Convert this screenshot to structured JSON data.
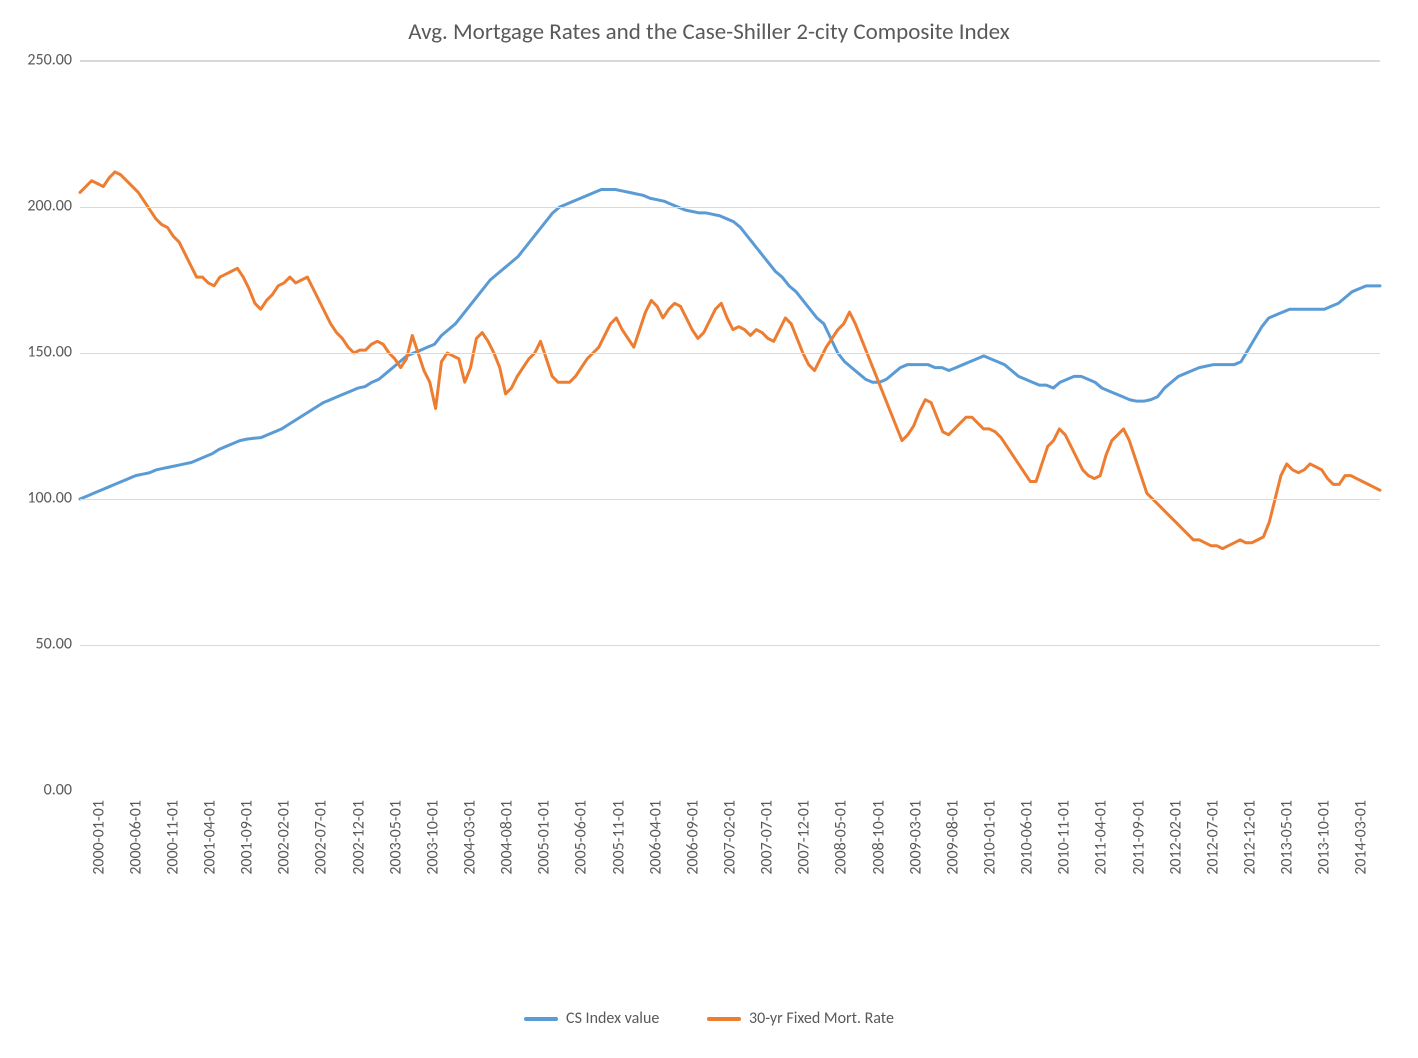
{
  "chart": {
    "type": "line",
    "title": "Avg. Mortgage Rates and the Case-Shiller 2-city Composite Index",
    "title_fontsize": 23,
    "title_color": "#595959",
    "background_color": "#ffffff",
    "grid_color": "#d9d9d9",
    "axis_font_color": "#595959",
    "axis_fontsize": 16,
    "line_width": 3,
    "ylim": [
      0,
      250
    ],
    "ytick_step": 50,
    "yticks": [
      "0.00",
      "50.00",
      "100.00",
      "150.00",
      "200.00",
      "250.00"
    ],
    "x_labels": [
      "2000-01-01",
      "2000-06-01",
      "2000-11-01",
      "2001-04-01",
      "2001-09-01",
      "2002-02-01",
      "2002-07-01",
      "2002-12-01",
      "2003-05-01",
      "2003-10-01",
      "2004-03-01",
      "2004-08-01",
      "2005-01-01",
      "2005-06-01",
      "2005-11-01",
      "2006-04-01",
      "2006-09-01",
      "2007-02-01",
      "2007-07-01",
      "2007-12-01",
      "2008-05-01",
      "2008-10-01",
      "2009-03-01",
      "2009-08-01",
      "2010-01-01",
      "2010-06-01",
      "2010-11-01",
      "2011-04-01",
      "2011-09-01",
      "2012-02-01",
      "2012-07-01",
      "2012-12-01",
      "2013-05-01",
      "2013-10-01",
      "2014-03-01"
    ],
    "series": [
      {
        "name": "CS Index value",
        "color": "#5b9bd5",
        "values": [
          100,
          101,
          102,
          103,
          104,
          105,
          106,
          107,
          108,
          108.5,
          109,
          110,
          110.5,
          111,
          111.5,
          112,
          112.5,
          113.5,
          114.5,
          115.5,
          117,
          118,
          119,
          120,
          120.5,
          120.8,
          121,
          122,
          123,
          124,
          125.5,
          127,
          128.5,
          130,
          131.5,
          133,
          134,
          135,
          136,
          137,
          138,
          138.5,
          140,
          141,
          143,
          145,
          147,
          149,
          150,
          151,
          152,
          153,
          156,
          158,
          160,
          163,
          166,
          169,
          172,
          175,
          177,
          179,
          181,
          183,
          186,
          189,
          192,
          195,
          198,
          200,
          201,
          202,
          203,
          204,
          205,
          206,
          206,
          206,
          205.5,
          205,
          204.5,
          204,
          203,
          202.5,
          202,
          201,
          200,
          199,
          198.5,
          198,
          198,
          197.5,
          197,
          196,
          195,
          193,
          190,
          187,
          184,
          181,
          178,
          176,
          173,
          171,
          168,
          165,
          162,
          160,
          155,
          150,
          147,
          145,
          143,
          141,
          140,
          140,
          141,
          143,
          145,
          146,
          146,
          146,
          146,
          145,
          145,
          144,
          145,
          146,
          147,
          148,
          149,
          148,
          147,
          146,
          144,
          142,
          141,
          140,
          139,
          139,
          138,
          140,
          141,
          142,
          142,
          141,
          140,
          138,
          137,
          136,
          135,
          134,
          133.5,
          133.5,
          134,
          135,
          138,
          140,
          142,
          143,
          144,
          145,
          145.5,
          146,
          146,
          146,
          146,
          147,
          151,
          155,
          159,
          162,
          163,
          164,
          165,
          165,
          165,
          165,
          165,
          165,
          166,
          167,
          169,
          171,
          172,
          173,
          173,
          173
        ]
      },
      {
        "name": "30-yr Fixed Mort. Rate",
        "color": "#ed7d31",
        "values": [
          205,
          207,
          209,
          208,
          207,
          210,
          212,
          211,
          209,
          207,
          205,
          202,
          199,
          196,
          194,
          193,
          190,
          188,
          184,
          180,
          176,
          176,
          174,
          173,
          176,
          177,
          178,
          179,
          176,
          172,
          167,
          165,
          168,
          170,
          173,
          174,
          176,
          174,
          175,
          176,
          172,
          168,
          164,
          160,
          157,
          155,
          152,
          150,
          151,
          151,
          153,
          154,
          153,
          150,
          148,
          145,
          148,
          156,
          150,
          144,
          140,
          131,
          147,
          150,
          149,
          148,
          140,
          145,
          155,
          157,
          154,
          150,
          145,
          136,
          138,
          142,
          145,
          148,
          150,
          154,
          148,
          142,
          140,
          140,
          140,
          142,
          145,
          148,
          150,
          152,
          156,
          160,
          162,
          158,
          155,
          152,
          158,
          164,
          168,
          166,
          162,
          165,
          167,
          166,
          162,
          158,
          155,
          157,
          161,
          165,
          167,
          162,
          158,
          159,
          158,
          156,
          158,
          157,
          155,
          154,
          158,
          162,
          160,
          155,
          150,
          146,
          144,
          148,
          152,
          155,
          158,
          160,
          164,
          160,
          155,
          150,
          145,
          140,
          135,
          130,
          125,
          120,
          122,
          125,
          130,
          134,
          133,
          128,
          123,
          122,
          124,
          126,
          128,
          128,
          126,
          124,
          124,
          123,
          121,
          118,
          115,
          112,
          109,
          106,
          106,
          112,
          118,
          120,
          124,
          122,
          118,
          114,
          110,
          108,
          107,
          108,
          115,
          120,
          122,
          124,
          120,
          114,
          108,
          102,
          100,
          98,
          96,
          94,
          92,
          90,
          88,
          86,
          86,
          85,
          84,
          84,
          83,
          84,
          85,
          86,
          85,
          85,
          86,
          87,
          92,
          100,
          108,
          112,
          110,
          109,
          110,
          112,
          111,
          110,
          107,
          105,
          105,
          108,
          108,
          107,
          106,
          105,
          104,
          103
        ]
      }
    ],
    "legend": {
      "items": [
        "CS Index value",
        "30-yr Fixed Mort. Rate"
      ],
      "fontsize": 16,
      "color": "#595959"
    }
  }
}
